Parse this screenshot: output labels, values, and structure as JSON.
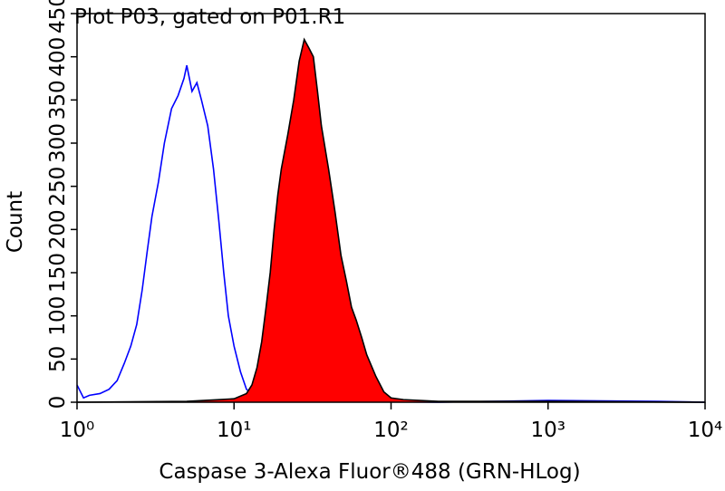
{
  "chart_data": {
    "type": "histogram-overlay",
    "title": "Plot P03, gated on P01.R1",
    "x_label": "Caspase 3-Alexa Fluor®488 (GRN-HLog)",
    "y_label": "Count",
    "xscale": "log",
    "xlim": [
      1,
      10000
    ],
    "xticks": [
      {
        "value": 1,
        "label": "10⁰"
      },
      {
        "value": 10,
        "label": "10¹"
      },
      {
        "value": 100,
        "label": "10²"
      },
      {
        "value": 1000,
        "label": "10³"
      },
      {
        "value": 10000,
        "label": "10⁴"
      }
    ],
    "ylim": [
      0,
      450
    ],
    "yticks": [
      0,
      50,
      100,
      150,
      200,
      250,
      300,
      350,
      400,
      450
    ],
    "series": [
      {
        "color": "#0000ff",
        "x": [
          1.0,
          1.1,
          1.2,
          1.4,
          1.6,
          1.8,
          2.0,
          2.2,
          2.4,
          2.6,
          2.8,
          3.0,
          3.3,
          3.6,
          4.0,
          4.4,
          4.8,
          5.0,
          5.4,
          5.8,
          6.2,
          6.8,
          7.4,
          8.0,
          8.6,
          9.2,
          10,
          11,
          12,
          14,
          20,
          50,
          200,
          1000,
          5000,
          10000
        ],
        "values": [
          20,
          5,
          8,
          10,
          15,
          25,
          45,
          65,
          90,
          130,
          175,
          215,
          255,
          300,
          340,
          355,
          375,
          390,
          360,
          370,
          350,
          320,
          270,
          210,
          150,
          100,
          65,
          35,
          15,
          5,
          2,
          1,
          0,
          2,
          1,
          0
        ]
      },
      {
        "color": "#000000",
        "fill": "#ff0000",
        "x": [
          1,
          5,
          8,
          10,
          12,
          13,
          14,
          15,
          16,
          17,
          18,
          19,
          20,
          22,
          24,
          26,
          28,
          30,
          32,
          34,
          36,
          40,
          44,
          48,
          52,
          56,
          60,
          65,
          70,
          80,
          90,
          100,
          120,
          200,
          1000,
          10000
        ],
        "values": [
          0,
          1,
          3,
          4,
          10,
          20,
          40,
          70,
          110,
          150,
          200,
          240,
          270,
          310,
          350,
          395,
          420,
          410,
          400,
          360,
          320,
          270,
          220,
          170,
          140,
          110,
          95,
          75,
          55,
          30,
          12,
          5,
          3,
          1,
          1,
          0
        ]
      }
    ]
  }
}
